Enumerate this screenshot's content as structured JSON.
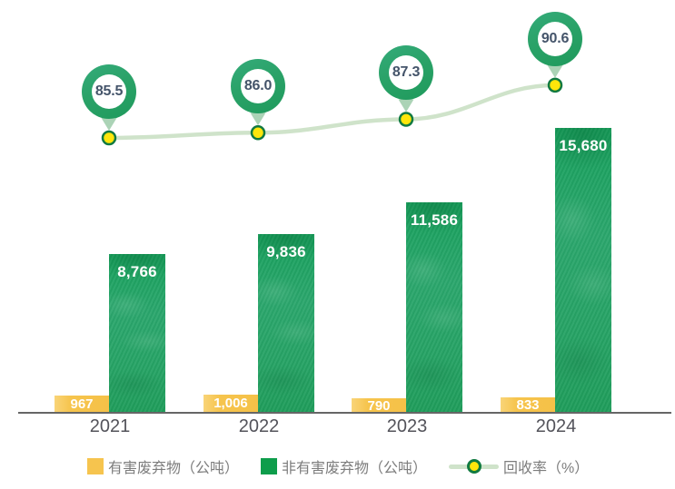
{
  "chart_data": {
    "type": "bar",
    "subtype": "grouped-bar-with-line-overlay",
    "categories": [
      "2021",
      "2022",
      "2023",
      "2024"
    ],
    "series": [
      {
        "name": "有害废弃物（公吨）",
        "type": "bar",
        "color": "#F6C44C",
        "values": [
          967,
          1006,
          790,
          833
        ],
        "labels": [
          "967",
          "1,006",
          "790",
          "833"
        ]
      },
      {
        "name": "非有害废弃物（公吨）",
        "type": "bar",
        "color": "#1F9D5B",
        "values": [
          8766,
          9836,
          11586,
          15680
        ],
        "labels": [
          "8,766",
          "9,836",
          "11,586",
          "15,680"
        ]
      },
      {
        "name": "回收率（%）",
        "type": "line",
        "color": "#CFE3CA",
        "marker_fill": "#FFE60B",
        "marker_border": "#117A41",
        "values": [
          85.5,
          86.0,
          87.3,
          90.6
        ],
        "labels": [
          "85.5",
          "86.0",
          "87.3",
          "90.6"
        ]
      }
    ],
    "title": "",
    "xlabel": "",
    "ylabel": "",
    "grid": false,
    "y_axis_visible": false,
    "x_axis_line": true,
    "value_labels_visible": true,
    "legend_position": "bottom"
  },
  "legend": {
    "items": [
      {
        "label": "有害废弃物（公吨）",
        "marker": "square",
        "swatch": "#F6C44E"
      },
      {
        "label": "非有害废弃物（公吨）",
        "marker": "square",
        "swatch": "#0E9D4B"
      },
      {
        "label": "回收率（%）",
        "marker": "line-dot",
        "line_color": "#CFE3CA",
        "dot_fill": "#FFE60B",
        "dot_border": "#117A41"
      }
    ]
  },
  "colors": {
    "bar_hazardous": "#F6C44C",
    "bar_non_hazardous": "#22A263",
    "badge_ring": "#2AA268",
    "badge_text": "#44546A",
    "trend_line": "#CFE3CA",
    "marker_fill": "#FFE60B",
    "marker_border": "#117A41",
    "axis_line": "#666666",
    "year_text": "#53535A",
    "legend_text": "#7D7D7D",
    "pointer": "#ABD3B6"
  }
}
